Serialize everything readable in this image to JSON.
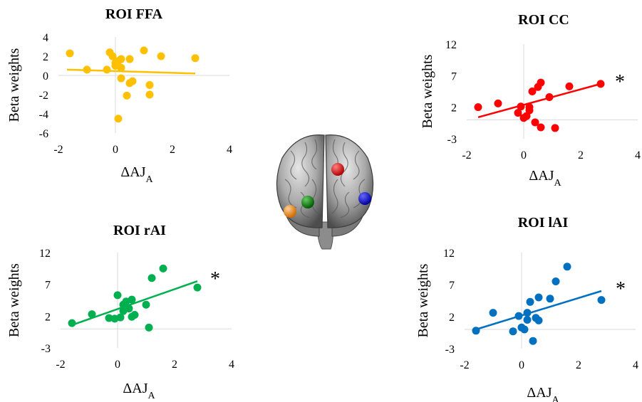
{
  "chart_data": [
    {
      "type": "scatter",
      "title": "ROI FFA",
      "ylabel": "Beta weights",
      "xlabel": "ΔAJ",
      "xlabel_sub": "A",
      "xlim": [
        -2,
        4
      ],
      "ylim": [
        -6,
        4
      ],
      "xticks": [
        -2,
        0,
        2,
        4
      ],
      "yticks": [
        4,
        2,
        0,
        -2,
        -4,
        -6
      ],
      "color": "#FFC000",
      "significance": "",
      "points": [
        [
          -1.6,
          2.3
        ],
        [
          -1.0,
          0.6
        ],
        [
          -0.3,
          0.6
        ],
        [
          -0.2,
          2.4
        ],
        [
          -0.1,
          2.0
        ],
        [
          0.0,
          1.3
        ],
        [
          0.0,
          1.0
        ],
        [
          0.1,
          -4.5
        ],
        [
          0.1,
          1.5
        ],
        [
          0.2,
          0.8
        ],
        [
          0.2,
          1.7
        ],
        [
          0.2,
          -0.3
        ],
        [
          0.4,
          -2.1
        ],
        [
          0.5,
          -0.8
        ],
        [
          0.5,
          1.7
        ],
        [
          0.6,
          -0.6
        ],
        [
          1.0,
          2.6
        ],
        [
          1.2,
          -1.0
        ],
        [
          1.2,
          -2.0
        ],
        [
          1.6,
          2.0
        ],
        [
          2.8,
          1.8
        ]
      ],
      "fit": [
        [
          -1.7,
          0.6
        ],
        [
          2.8,
          0.2
        ]
      ]
    },
    {
      "type": "scatter",
      "title": "ROI CC",
      "ylabel": "Beta weights",
      "xlabel": "ΔAJ",
      "xlabel_sub": "A",
      "xlim": [
        -2,
        4
      ],
      "ylim": [
        -3,
        12
      ],
      "xticks": [
        -2,
        0,
        2,
        4
      ],
      "yticks": [
        12,
        7,
        2,
        -3
      ],
      "color": "#FF0000",
      "significance": "*",
      "points": [
        [
          -1.6,
          2.0
        ],
        [
          -0.9,
          2.6
        ],
        [
          -0.2,
          1.1
        ],
        [
          -0.1,
          2.1
        ],
        [
          0.0,
          0.3
        ],
        [
          0.1,
          0.6
        ],
        [
          0.2,
          1.5
        ],
        [
          0.2,
          2.0
        ],
        [
          0.3,
          4.5
        ],
        [
          0.4,
          -0.4
        ],
        [
          0.5,
          5.2
        ],
        [
          0.6,
          5.9
        ],
        [
          0.6,
          -1.2
        ],
        [
          0.9,
          3.6
        ],
        [
          1.1,
          -1.3
        ],
        [
          1.6,
          5.3
        ],
        [
          2.7,
          5.7
        ]
      ],
      "fit": [
        [
          -1.6,
          0.4
        ],
        [
          2.7,
          5.7
        ]
      ]
    },
    {
      "type": "scatter",
      "title": "ROI rAI",
      "ylabel": "Beta weights",
      "xlabel": "ΔAJ",
      "xlabel_sub": "A",
      "xlim": [
        -2,
        4
      ],
      "ylim": [
        -3,
        12
      ],
      "xticks": [
        -2,
        0,
        2,
        4
      ],
      "yticks": [
        12,
        7,
        2,
        -3
      ],
      "color": "#00B050",
      "significance": "*",
      "points": [
        [
          -1.6,
          0.9
        ],
        [
          -0.9,
          2.3
        ],
        [
          -0.3,
          1.7
        ],
        [
          -0.1,
          1.6
        ],
        [
          0.0,
          5.3
        ],
        [
          0.1,
          1.8
        ],
        [
          0.2,
          2.8
        ],
        [
          0.2,
          3.8
        ],
        [
          0.3,
          4.3
        ],
        [
          0.4,
          3.2
        ],
        [
          0.5,
          1.9
        ],
        [
          0.5,
          4.6
        ],
        [
          0.6,
          2.2
        ],
        [
          1.0,
          3.8
        ],
        [
          1.1,
          0.2
        ],
        [
          1.2,
          8.0
        ],
        [
          1.6,
          9.5
        ],
        [
          2.8,
          6.5
        ]
      ],
      "fit": [
        [
          -1.6,
          0.6
        ],
        [
          2.8,
          7.5
        ]
      ]
    },
    {
      "type": "scatter",
      "title": "ROI lAI",
      "ylabel": "Beta weights",
      "xlabel": "ΔAJ",
      "xlabel_sub": "A",
      "xlim": [
        -2,
        4
      ],
      "ylim": [
        -3,
        12
      ],
      "xticks": [
        -2,
        0,
        2,
        4
      ],
      "yticks": [
        12,
        7,
        2,
        -3
      ],
      "color": "#0070C0",
      "significance": "*",
      "points": [
        [
          -1.6,
          -0.2
        ],
        [
          -1.0,
          2.6
        ],
        [
          -0.3,
          -0.3
        ],
        [
          -0.1,
          2.1
        ],
        [
          0.0,
          0.3
        ],
        [
          0.1,
          0.0
        ],
        [
          0.2,
          1.5
        ],
        [
          0.2,
          2.6
        ],
        [
          0.3,
          4.3
        ],
        [
          0.4,
          -1.8
        ],
        [
          0.5,
          1.8
        ],
        [
          0.6,
          5.0
        ],
        [
          0.6,
          1.4
        ],
        [
          1.0,
          4.8
        ],
        [
          1.2,
          7.5
        ],
        [
          1.6,
          9.8
        ],
        [
          2.8,
          4.6
        ]
      ],
      "fit": [
        [
          -1.6,
          0.0
        ],
        [
          2.8,
          6.0
        ]
      ]
    }
  ],
  "brain": {
    "icon": "brain-render-icon",
    "roi_colors": [
      "#FF0000",
      "#00B050",
      "#0000FF",
      "#FF9A1A"
    ]
  }
}
